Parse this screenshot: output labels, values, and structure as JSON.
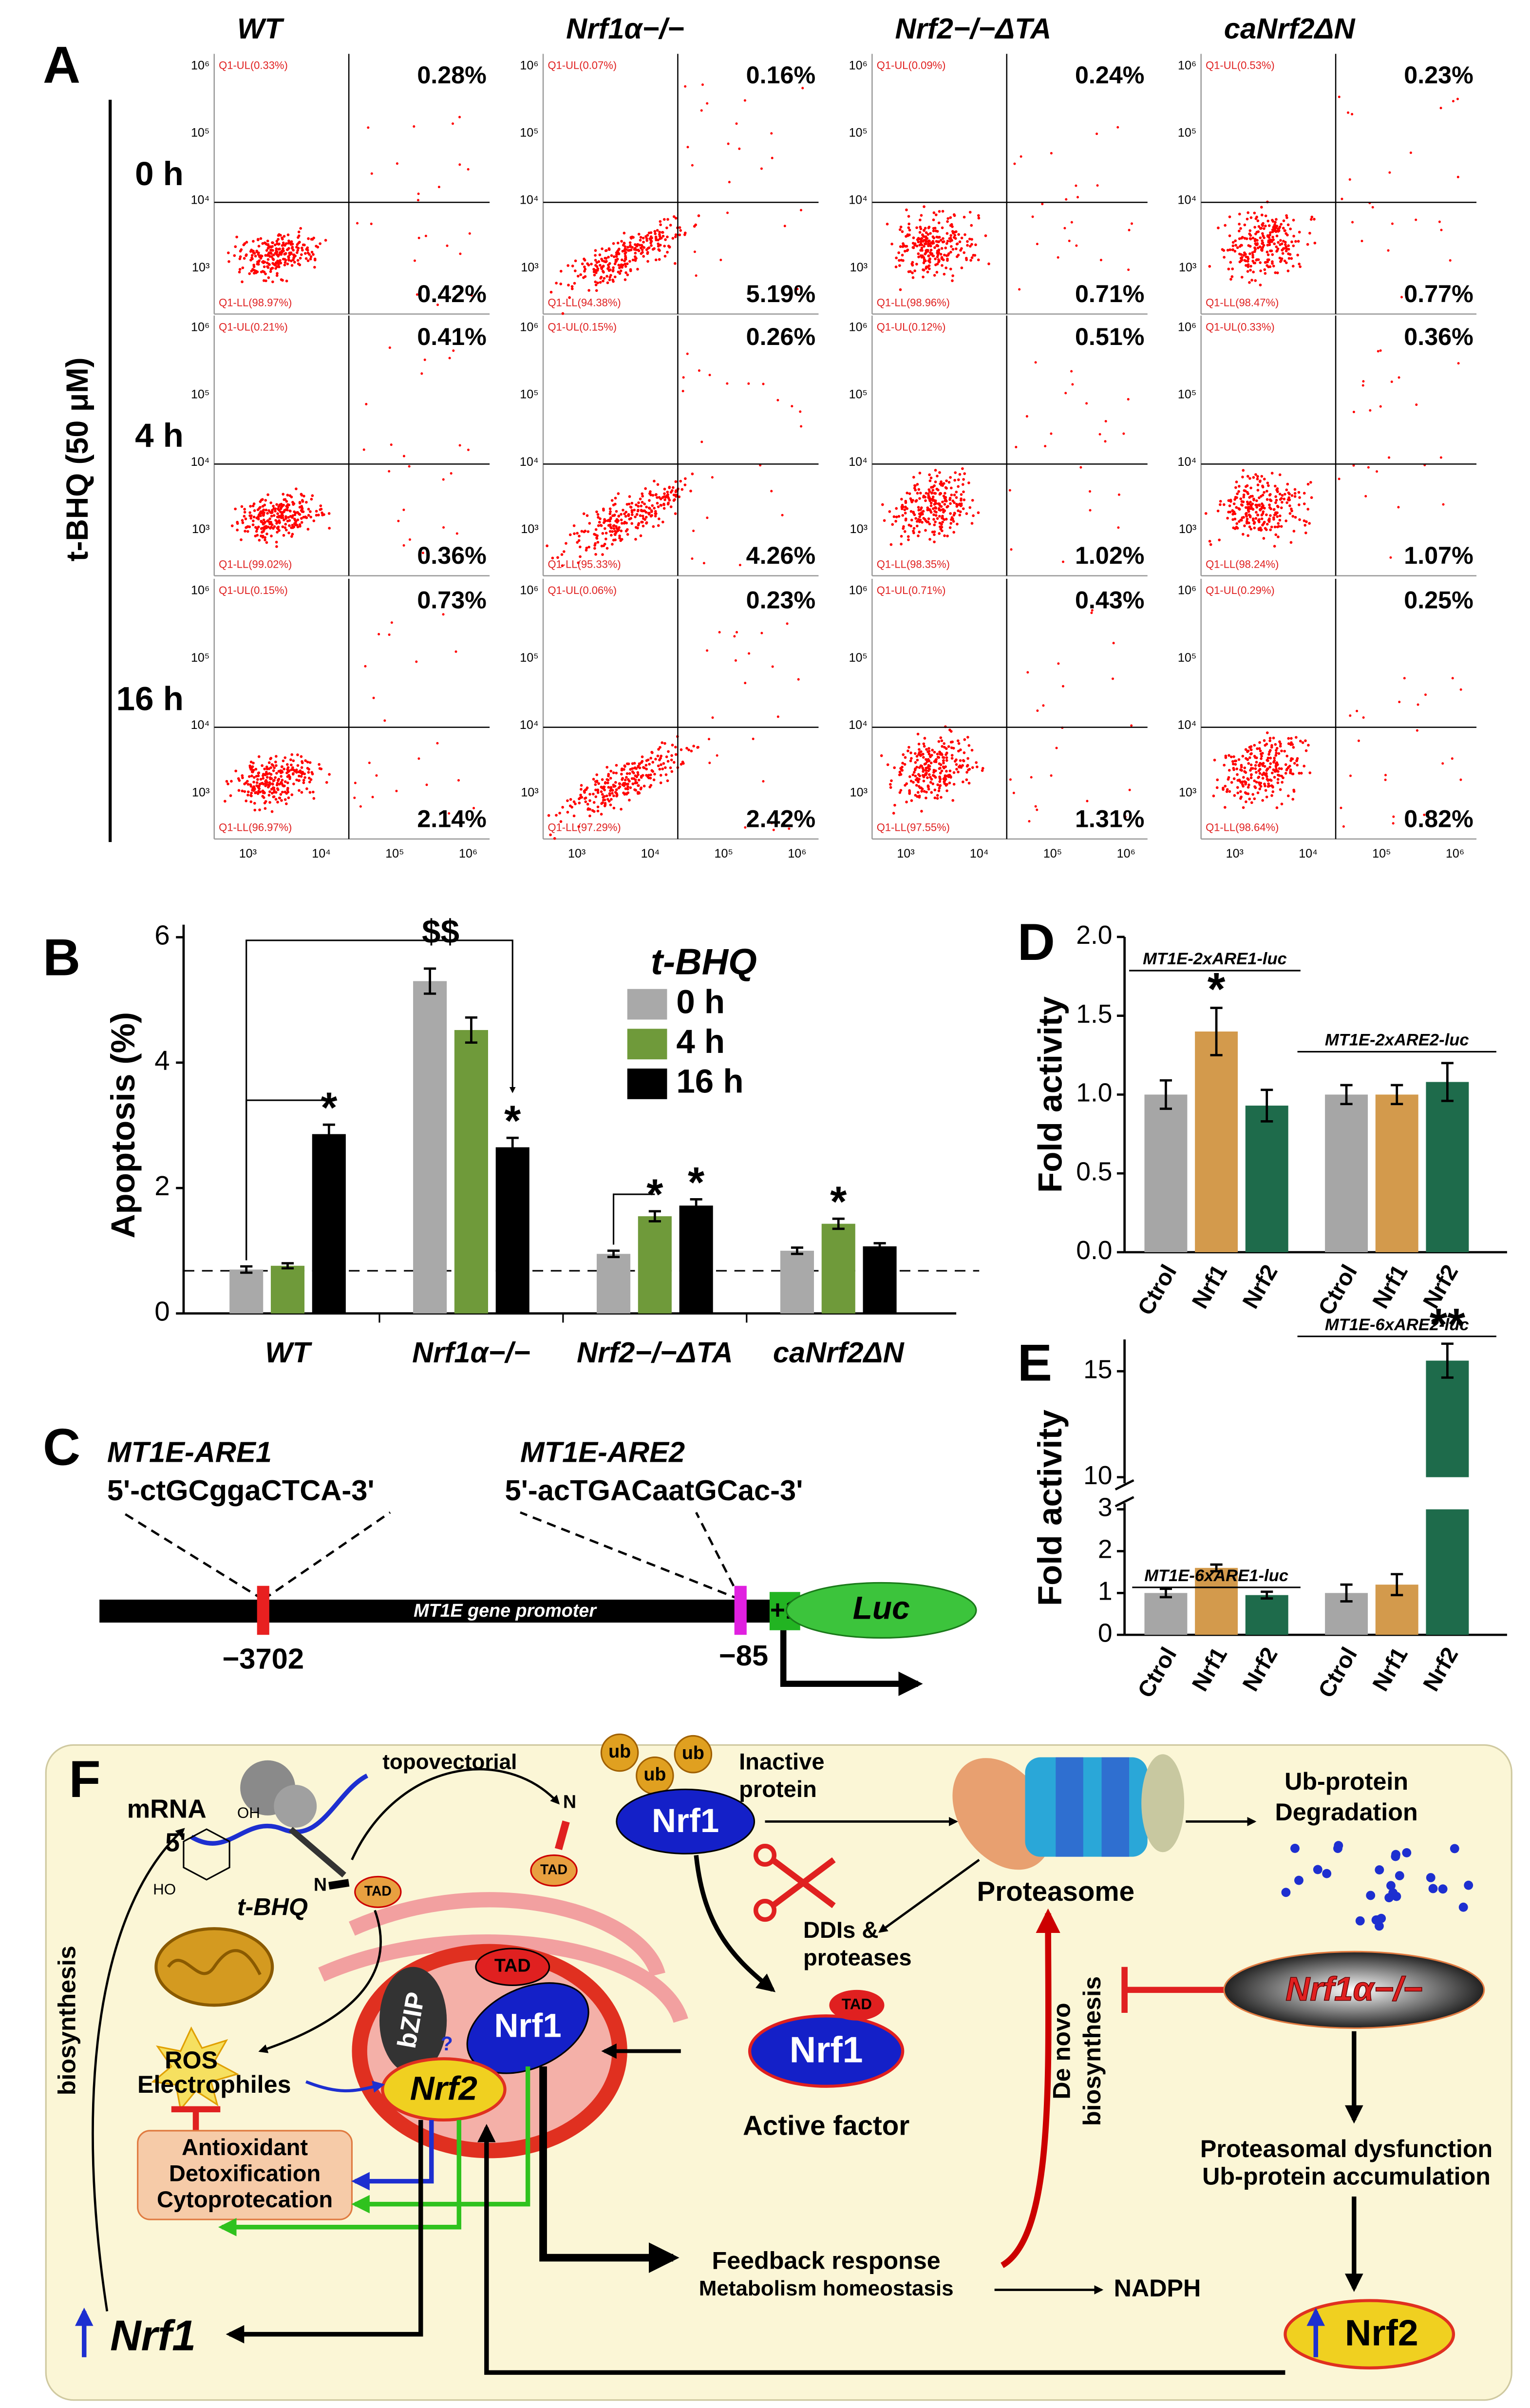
{
  "panel_labels": [
    "A",
    "B",
    "C",
    "D",
    "E",
    "F"
  ],
  "panel_a": {
    "columns": [
      "WT",
      "Nrf1α−/−",
      "Nrf2−/−ΔTA",
      "caNrf2ΔN"
    ],
    "rows": [
      "0 h",
      "4 h",
      "16 h"
    ],
    "ylabel": "t-BHQ (50 μM)",
    "axis_ticks": [
      "10³",
      "10⁴",
      "10⁵",
      "10⁶"
    ],
    "plots": [
      [
        {
          "ul": "Q1-UL(0.33%)",
          "ur": "0.28%",
          "ll": "Q1-LL(98.97%)",
          "lr": "0.42%"
        },
        {
          "ul": "Q1-UL(0.07%)",
          "ur": "0.16%",
          "ll": "Q1-LL(94.38%)",
          "lr": "5.19%"
        },
        {
          "ul": "Q1-UL(0.09%)",
          "ur": "0.24%",
          "ll": "Q1-LL(98.96%)",
          "lr": "0.71%"
        },
        {
          "ul": "Q1-UL(0.53%)",
          "ur": "0.23%",
          "ll": "Q1-LL(98.47%)",
          "lr": "0.77%"
        }
      ],
      [
        {
          "ul": "Q1-UL(0.21%)",
          "ur": "0.41%",
          "ll": "Q1-LL(99.02%)",
          "lr": "0.36%"
        },
        {
          "ul": "Q1-UL(0.15%)",
          "ur": "0.26%",
          "ll": "Q1-LL(95.33%)",
          "lr": "4.26%"
        },
        {
          "ul": "Q1-UL(0.12%)",
          "ur": "0.51%",
          "ll": "Q1-LL(98.35%)",
          "lr": "1.02%"
        },
        {
          "ul": "Q1-UL(0.33%)",
          "ur": "0.36%",
          "ll": "Q1-LL(98.24%)",
          "lr": "1.07%"
        }
      ],
      [
        {
          "ul": "Q1-UL(0.15%)",
          "ur": "0.73%",
          "ll": "Q1-LL(96.97%)",
          "lr": "2.14%"
        },
        {
          "ul": "Q1-UL(0.06%)",
          "ur": "0.23%",
          "ll": "Q1-LL(97.29%)",
          "lr": "2.42%"
        },
        {
          "ul": "Q1-UL(0.71%)",
          "ur": "0.43%",
          "ll": "Q1-LL(97.55%)",
          "lr": "1.31%"
        },
        {
          "ul": "Q1-UL(0.29%)",
          "ur": "0.25%",
          "ll": "Q1-LL(98.64%)",
          "lr": "0.82%"
        }
      ]
    ]
  },
  "chart_data": [
    {
      "type": "bar",
      "ylabel": "Apoptosis (%)",
      "categories": [
        "WT",
        "Nrf1α−/−",
        "Nrf2−/−ΔTA",
        "caNrf2ΔN"
      ],
      "ylim": [
        0,
        6.2
      ],
      "yticks": [
        0,
        2,
        4,
        6
      ],
      "legend_title": "t-BHQ",
      "legend": "upper right",
      "reference_line": 0.68,
      "annotation": "$$",
      "series": [
        {
          "name": "0 h",
          "color": "#a9a9a9",
          "values": [
            0.7,
            5.3,
            0.95,
            1.0
          ],
          "errors": [
            0.05,
            0.2,
            0.05,
            0.05
          ],
          "significance": [
            null,
            null,
            null,
            null
          ]
        },
        {
          "name": "4 h",
          "color": "#6f9a3a",
          "values": [
            0.76,
            4.52,
            1.55,
            1.43
          ],
          "errors": [
            0.04,
            0.2,
            0.08,
            0.08
          ],
          "significance": [
            null,
            null,
            "*",
            "*"
          ]
        },
        {
          "name": "16 h",
          "color": "#000000",
          "values": [
            2.86,
            2.65,
            1.72,
            1.07
          ],
          "errors": [
            0.15,
            0.15,
            0.1,
            0.05
          ],
          "significance": [
            "*",
            "*",
            "*",
            null
          ]
        }
      ]
    },
    {
      "type": "bar",
      "ylabel": "Fold activity",
      "groups": [
        "MT1E-2xARE1-luc",
        "MT1E-2xARE2-luc"
      ],
      "categories": [
        "Ctrol",
        "Nrf1",
        "Nrf2",
        "Ctrol",
        "Nrf1",
        "Nrf2"
      ],
      "values": [
        1.0,
        1.4,
        0.93,
        1.0,
        1.0,
        1.08
      ],
      "errors": [
        0.09,
        0.15,
        0.1,
        0.06,
        0.06,
        0.12
      ],
      "colors": [
        "#a6a6a6",
        "#d39a4c",
        "#1e6b4b",
        "#a6a6a6",
        "#d39a4c",
        "#1e6b4b"
      ],
      "significance": [
        null,
        "*",
        null,
        null,
        null,
        null
      ],
      "ylim": [
        0,
        2
      ],
      "yticks": [
        {
          "value": 0,
          "label": "0.0"
        },
        {
          "value": 0.5,
          "label": "0.5"
        },
        {
          "value": 1,
          "label": "1.0"
        },
        {
          "value": 1.5,
          "label": "1.5"
        },
        {
          "value": 2,
          "label": "2.0"
        }
      ]
    },
    {
      "type": "bar",
      "ylabel": "Fold activity",
      "groups": [
        "MT1E-6xARE1-luc",
        "MT1E-6xARE2-luc"
      ],
      "categories": [
        "Ctrol",
        "Nrf1",
        "Nrf2",
        "Ctrol",
        "Nrf1",
        "Nrf2"
      ],
      "values": [
        1.0,
        1.6,
        0.95,
        1.0,
        1.2,
        15.5
      ],
      "errors": [
        0.1,
        0.08,
        0.08,
        0.2,
        0.25,
        0.8
      ],
      "colors": [
        "#a6a6a6",
        "#d39a4c",
        "#1e6b4b",
        "#a6a6a6",
        "#d39a4c",
        "#1e6b4b"
      ],
      "significance": [
        null,
        null,
        null,
        null,
        null,
        "**"
      ],
      "ylim": [
        0,
        16.5
      ],
      "axis_break": [
        3,
        10
      ],
      "yticks": [
        0,
        1,
        2,
        3,
        10,
        15
      ]
    }
  ],
  "panel_c": {
    "are1_name": "MT1E-ARE1",
    "are1_seq": "5'-ctGCggaCTCA-3'",
    "are2_name": "MT1E-ARE2",
    "are2_seq": "5'-acTGACaatGCac-3'",
    "promoter": "MT1E gene promoter",
    "pos1": "−3702",
    "pos2": "−85",
    "tss": "+1",
    "reporter": "Luc"
  },
  "panel_f": {
    "mrna": "mRNA",
    "five_prime": "5'",
    "topovectorial": "topovectorial",
    "ub": "ub",
    "inactive1": "Inactive",
    "inactive2": "protein",
    "nrf1": "Nrf1",
    "n_term": "N",
    "tad": "TAD",
    "oh": "OH",
    "ho": "HO",
    "tbhq": "t-BHQ",
    "ros": "ROS",
    "electrophiles": "Electrophiles",
    "bzip": "bZIP",
    "question": "?",
    "nrf2": "Nrf2",
    "antioxidant": "Antioxidant",
    "detox": "Detoxification",
    "cytoprot": "Cytoprotecation",
    "biosynthesis": "biosynthesis",
    "proteasome": "Proteasome",
    "ub_protein": "Ub-protein",
    "degradation": "Degradation",
    "ddis": "DDIs &",
    "proteases": "proteases",
    "active": "Active factor",
    "de_novo": "De novo",
    "biosynthesis2": "biosynthesis",
    "knockout": "Nrf1α−/−",
    "dysfunction": "Proteasomal dysfunction",
    "accumulation": "Ub-protein accumulation",
    "feedback": "Feedback response",
    "metabolism": "Metabolism homeostasis",
    "nadph": "NADPH"
  }
}
